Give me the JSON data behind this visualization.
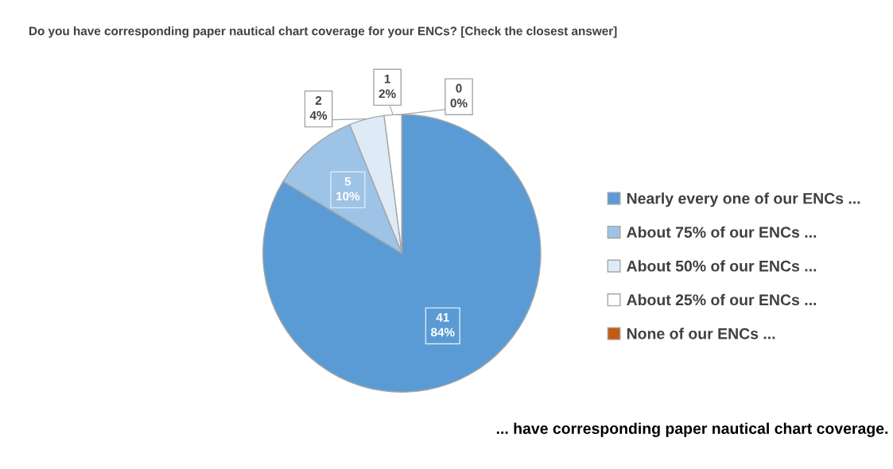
{
  "chart_data": {
    "type": "pie",
    "title": "Do you have corresponding paper nautical chart coverage for your ENCs? [Check the closest answer]",
    "categories": [
      "Nearly every one of our ENCs ...",
      "About 75% of our ENCs ...",
      "About 50% of our ENCs ...",
      "About 25% of our ENCs ...",
      "None of our ENCs ..."
    ],
    "values": [
      41,
      5,
      2,
      1,
      0
    ],
    "value_labels": [
      "41\n84%",
      "5\n10%",
      "2\n4%",
      "1\n2%",
      "0\n0%"
    ],
    "colors": [
      "#5b9bd5",
      "#9dc3e6",
      "#deebf7",
      "#ffffff",
      "#c55a11"
    ],
    "legend": "right",
    "annotations": [
      "... have corresponding paper nautical chart coverage."
    ]
  }
}
